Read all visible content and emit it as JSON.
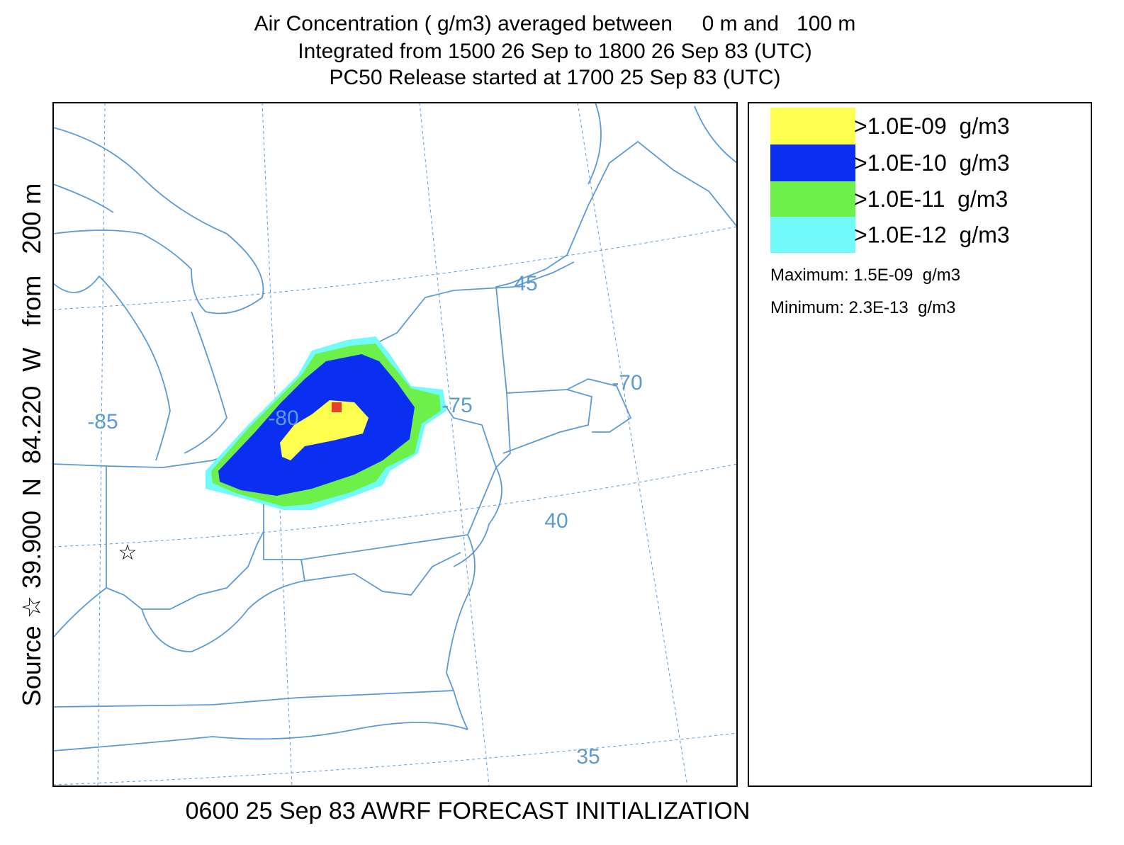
{
  "title": [
    "Air Concentration ( g/m3) averaged between     0 m and   100 m",
    "Integrated from 1500 26 Sep to 1800 26 Sep 83 (UTC)",
    "PC50 Release started at 1700 25 Sep 83 (UTC)"
  ],
  "side_label": "Source ☆ 39.900  N  84.220  W   from   200 m",
  "footer": "0600 25 Sep 83 AWRF FORECAST INITIALIZATION",
  "map": {
    "grid_labels": [
      "-85",
      "-80",
      "-75",
      "-70",
      "45",
      "40",
      "35"
    ],
    "source_marker": "☆",
    "line_color": "#5b9bd5"
  },
  "legend": {
    "items": [
      {
        "label": ">1.0E-09  g/m3",
        "color": "#ffff50"
      },
      {
        "label": ">1.0E-10  g/m3",
        "color": "#0a2ff0"
      },
      {
        "label": ">1.0E-11  g/m3",
        "color": "#6ef04a"
      },
      {
        "label": ">1.0E-12  g/m3",
        "color": "#70fafa"
      }
    ],
    "maximum": "Maximum: 1.5E-09  g/m3",
    "minimum": "Minimum: 2.3E-13  g/m3",
    "peak_color": "#e8402a"
  }
}
